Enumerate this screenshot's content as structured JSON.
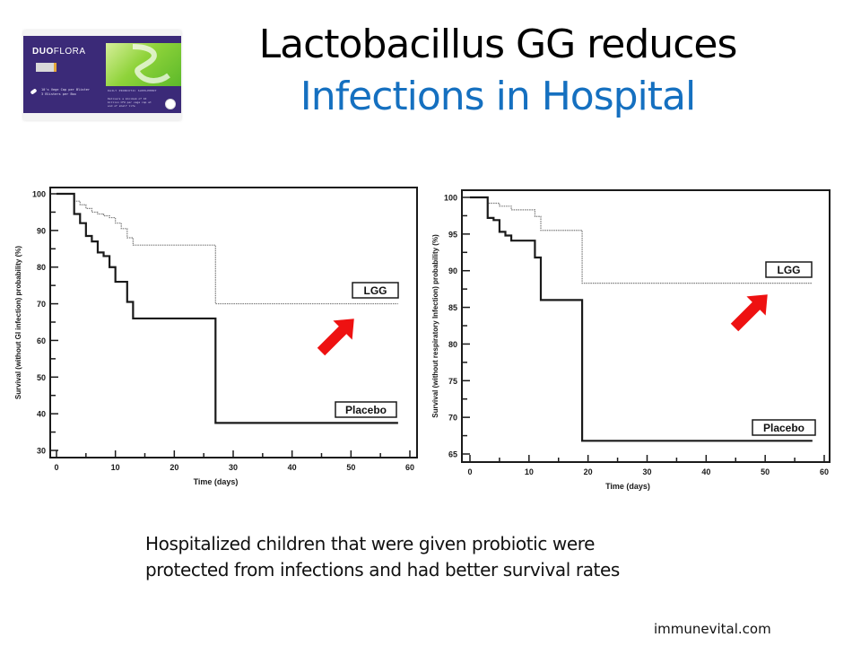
{
  "slide": {
    "title_line1": "Lactobacillus GG reduces",
    "title_line2": "Infections in Hospital",
    "title_line2_color": "#1570c0",
    "caption_line1": "Hospitalized children that were given probiotic were",
    "caption_line2": "protected from infections and had better survival rates",
    "footer": "immunevital.com"
  },
  "product_image": {
    "brand_bold": "DUO",
    "brand_light": "FLORA",
    "lines": [
      "10's Vege Cap per Blister",
      "3 Blisters per Box"
    ],
    "tagline": "DAILY PROBIOTIC SUPPLEMENT",
    "small_text": "Delivers a minimum of 10 billion CFU per vege cap at end of shelf life",
    "primary_color": "#3b2a78",
    "accent_color": "#8fd33a"
  },
  "chart_data": [
    {
      "type": "line",
      "subtype": "step",
      "title": "",
      "xlabel": "Time (days)",
      "ylabel": "Survival (without GI infection) probability (%)",
      "xlim": [
        0,
        60
      ],
      "ylim": [
        30,
        100
      ],
      "xticks": [
        0,
        10,
        20,
        30,
        40,
        50,
        60
      ],
      "yticks": [
        30,
        40,
        50,
        60,
        70,
        80,
        90,
        100
      ],
      "grid": false,
      "series": [
        {
          "name": "LGG",
          "style": "dotted",
          "color": "#888888",
          "x": [
            0,
            3,
            4,
            5,
            6,
            7,
            8,
            9,
            10,
            11,
            12,
            13,
            27,
            58
          ],
          "y": [
            100,
            98,
            97,
            96,
            95,
            94.5,
            94,
            93.5,
            92,
            90.5,
            88,
            86,
            70,
            70
          ]
        },
        {
          "name": "Placebo",
          "style": "solid",
          "color": "#1a1a1a",
          "x": [
            0,
            3,
            4,
            5,
            6,
            7,
            8,
            9,
            10,
            12,
            13,
            27,
            58
          ],
          "y": [
            100,
            94.5,
            92,
            88.5,
            87,
            84,
            83,
            80,
            76,
            70.5,
            66,
            37.5,
            37.5
          ]
        }
      ],
      "annotations": [
        {
          "text": "LGG",
          "type": "boxed-label",
          "near": "LGG line end"
        },
        {
          "text": "Placebo",
          "type": "boxed-label",
          "near": "Placebo line end"
        },
        {
          "type": "red-arrow",
          "direction": "up-right",
          "color": "#ee1111"
        }
      ]
    },
    {
      "type": "line",
      "subtype": "step",
      "title": "",
      "xlabel": "Time (days)",
      "ylabel": "Survival (without respiratory Infection) probability (%)",
      "xlim": [
        0,
        60
      ],
      "ylim": [
        65,
        100
      ],
      "xticks": [
        0,
        10,
        20,
        30,
        40,
        50,
        60
      ],
      "yticks": [
        65,
        70,
        75,
        80,
        85,
        90,
        95,
        100
      ],
      "grid": false,
      "series": [
        {
          "name": "LGG",
          "style": "dotted",
          "color": "#888888",
          "x": [
            0,
            3,
            5,
            7,
            11,
            12,
            19,
            58
          ],
          "y": [
            100,
            99.2,
            98.8,
            98.3,
            97.4,
            95.5,
            88.3,
            88.3
          ]
        },
        {
          "name": "Placebo",
          "style": "solid",
          "color": "#1a1a1a",
          "x": [
            0,
            3,
            4,
            5,
            6,
            7,
            11,
            12,
            19,
            58
          ],
          "y": [
            100,
            97.2,
            96.9,
            95.3,
            94.8,
            94.1,
            91.8,
            86,
            66.8,
            66.8
          ]
        }
      ],
      "annotations": [
        {
          "text": "LGG",
          "type": "boxed-label",
          "near": "LGG line end"
        },
        {
          "text": "Placebo",
          "type": "boxed-label",
          "near": "Placebo line end"
        },
        {
          "type": "red-arrow",
          "direction": "up-right",
          "color": "#ee1111"
        }
      ]
    }
  ]
}
